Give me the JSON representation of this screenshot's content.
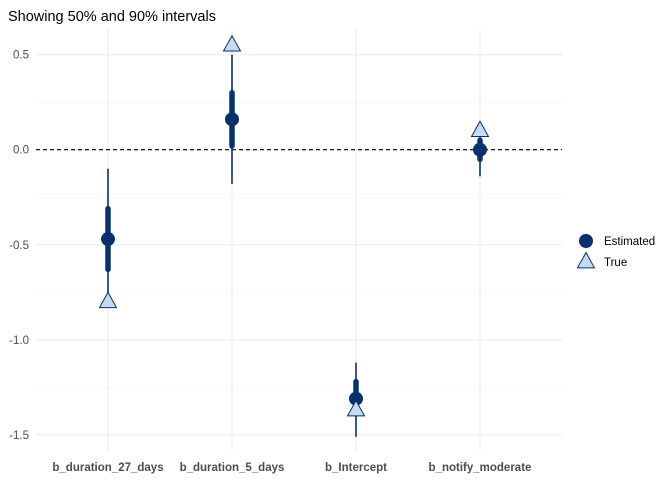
{
  "chart_data": {
    "type": "interval",
    "title": "Showing 50% and 90% intervals",
    "xlabel": "",
    "ylabel": "",
    "categories": [
      "b_duration_27_days",
      "b_duration_5_days",
      "b_Intercept",
      "b_notify_moderate"
    ],
    "ylim": [
      -1.58,
      0.63
    ],
    "yticks": [
      0.5,
      0.0,
      -0.5,
      -1.0,
      -1.5
    ],
    "ytick_labels": [
      "0.5",
      "0.0",
      "-0.5",
      "-1.0",
      "-1.5"
    ],
    "grid": true,
    "reference_line": 0,
    "series": [
      {
        "name": "Estimated",
        "marker": "circle",
        "color": "#08306b",
        "estimates": [
          -0.47,
          0.16,
          -1.31,
          0.0
        ],
        "interval_50": [
          [
            -0.63,
            -0.31
          ],
          [
            0.02,
            0.3
          ],
          [
            -1.39,
            -1.22
          ],
          [
            -0.05,
            0.05
          ]
        ],
        "interval_90": [
          [
            -0.77,
            -0.1
          ],
          [
            -0.18,
            0.5
          ],
          [
            -1.51,
            -1.12
          ],
          [
            -0.14,
            0.13
          ]
        ]
      },
      {
        "name": "True",
        "marker": "triangle",
        "color": "#c6dbef",
        "values": [
          -0.8,
          0.55,
          -1.37,
          0.1
        ]
      }
    ],
    "legend_position": "right",
    "legend_title": ""
  }
}
